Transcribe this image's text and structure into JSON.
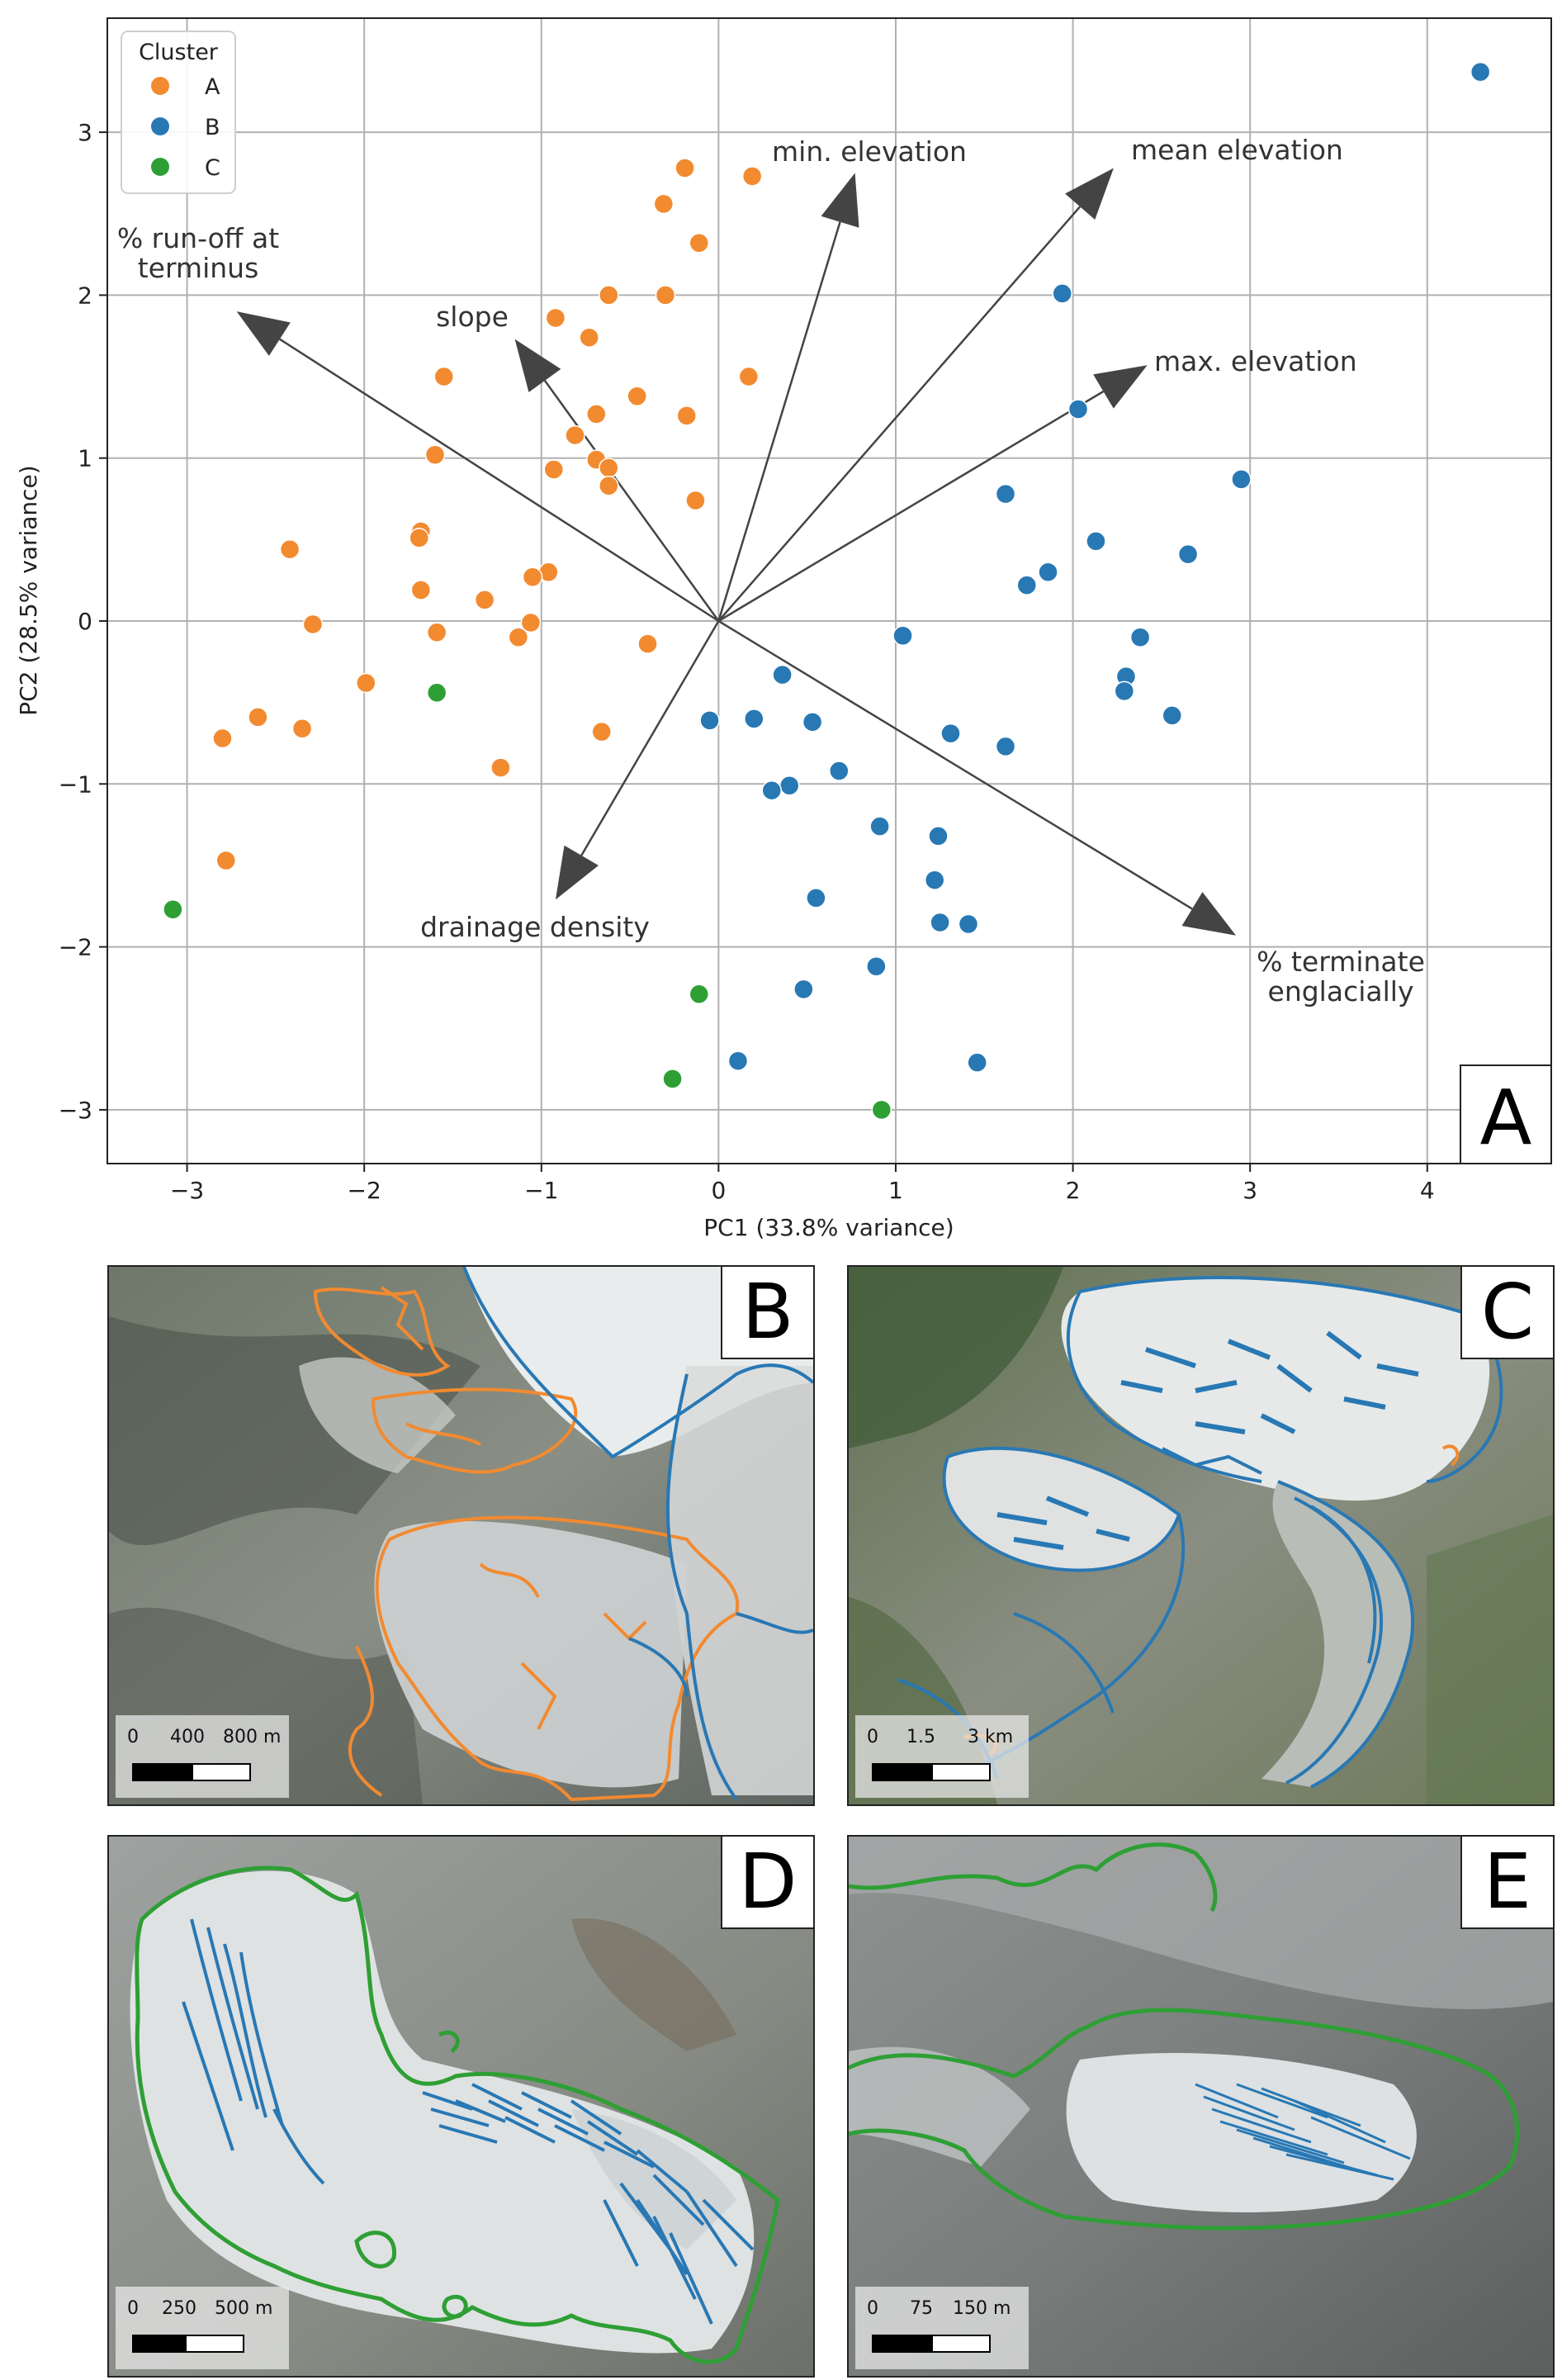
{
  "chart_data": {
    "type": "scatter",
    "panel_label": "A",
    "xlabel": "PC1 (33.8% variance)",
    "ylabel": "PC2 (28.5% variance)",
    "xlim": [
      -3.45,
      4.7
    ],
    "ylim": [
      -3.33,
      3.7
    ],
    "xticks": [
      -3,
      -2,
      -1,
      0,
      1,
      2,
      3,
      4
    ],
    "yticks": [
      -3,
      -2,
      -1,
      0,
      1,
      2,
      3
    ],
    "xtick_labels": [
      "−3",
      "−2",
      "−1",
      "0",
      "1",
      "2",
      "3",
      "4"
    ],
    "ytick_labels": [
      "−3",
      "−2",
      "−1",
      "0",
      "1",
      "2",
      "3"
    ],
    "grid": true,
    "legend": {
      "title": "Cluster",
      "position": "top-left"
    },
    "series": [
      {
        "name": "A",
        "color": "#f28a30",
        "points": [
          [
            0.19,
            2.73
          ],
          [
            -0.19,
            2.78
          ],
          [
            -0.31,
            2.56
          ],
          [
            -0.11,
            2.32
          ],
          [
            -0.62,
            2.0
          ],
          [
            -0.3,
            2.0
          ],
          [
            -0.92,
            1.86
          ],
          [
            -0.73,
            1.74
          ],
          [
            -1.55,
            1.5
          ],
          [
            0.17,
            1.5
          ],
          [
            -0.46,
            1.38
          ],
          [
            -0.69,
            1.27
          ],
          [
            -0.18,
            1.26
          ],
          [
            -1.6,
            1.02
          ],
          [
            -0.81,
            1.14
          ],
          [
            -0.69,
            0.99
          ],
          [
            -0.62,
            0.94
          ],
          [
            -0.93,
            0.93
          ],
          [
            -0.62,
            0.83
          ],
          [
            -0.13,
            0.74
          ],
          [
            -1.68,
            0.55
          ],
          [
            -1.69,
            0.51
          ],
          [
            -2.42,
            0.44
          ],
          [
            -0.96,
            0.3
          ],
          [
            -1.05,
            0.27
          ],
          [
            -1.68,
            0.19
          ],
          [
            -1.32,
            0.13
          ],
          [
            -2.29,
            -0.02
          ],
          [
            -1.59,
            -0.07
          ],
          [
            -1.06,
            -0.01
          ],
          [
            -1.13,
            -0.1
          ],
          [
            -0.4,
            -0.14
          ],
          [
            -1.99,
            -0.38
          ],
          [
            -2.6,
            -0.59
          ],
          [
            -2.35,
            -0.66
          ],
          [
            -2.8,
            -0.72
          ],
          [
            -0.66,
            -0.68
          ],
          [
            -1.23,
            -0.9
          ],
          [
            -2.78,
            -1.47
          ]
        ]
      },
      {
        "name": "B",
        "color": "#2878b4",
        "points": [
          [
            4.3,
            3.37
          ],
          [
            1.94,
            2.01
          ],
          [
            2.03,
            1.3
          ],
          [
            2.95,
            0.87
          ],
          [
            1.62,
            0.78
          ],
          [
            2.13,
            0.49
          ],
          [
            2.65,
            0.41
          ],
          [
            1.86,
            0.3
          ],
          [
            1.74,
            0.22
          ],
          [
            2.38,
            -0.1
          ],
          [
            1.04,
            -0.09
          ],
          [
            2.3,
            -0.34
          ],
          [
            2.29,
            -0.43
          ],
          [
            2.56,
            -0.58
          ],
          [
            0.36,
            -0.33
          ],
          [
            -0.05,
            -0.61
          ],
          [
            0.2,
            -0.6
          ],
          [
            0.53,
            -0.62
          ],
          [
            1.31,
            -0.69
          ],
          [
            1.62,
            -0.77
          ],
          [
            0.68,
            -0.92
          ],
          [
            0.4,
            -1.01
          ],
          [
            0.3,
            -1.04
          ],
          [
            0.91,
            -1.26
          ],
          [
            1.24,
            -1.32
          ],
          [
            1.22,
            -1.59
          ],
          [
            0.55,
            -1.7
          ],
          [
            1.25,
            -1.85
          ],
          [
            1.41,
            -1.86
          ],
          [
            0.89,
            -2.12
          ],
          [
            0.48,
            -2.26
          ],
          [
            0.11,
            -2.7
          ],
          [
            1.46,
            -2.71
          ]
        ]
      },
      {
        "name": "C",
        "color": "#2e9f34",
        "points": [
          [
            -1.59,
            -0.44
          ],
          [
            -3.08,
            -1.77
          ],
          [
            -0.11,
            -2.29
          ],
          [
            -0.26,
            -2.81
          ],
          [
            0.92,
            -3.0
          ]
        ]
      }
    ],
    "loadings": [
      {
        "label": "min. elevation",
        "x": 0.77,
        "y": 2.75
      },
      {
        "label": "mean elevation",
        "x": 2.23,
        "y": 2.78
      },
      {
        "label": "max. elevation",
        "x": 2.42,
        "y": 1.57
      },
      {
        "label": "slope",
        "x": -1.15,
        "y": 1.73
      },
      {
        "label": "% run-off at terminus",
        "x": -2.72,
        "y": 1.9
      },
      {
        "label": "drainage density",
        "x": -0.92,
        "y": -1.71
      },
      {
        "label": "% terminate englacially",
        "x": 2.92,
        "y": -1.93
      }
    ],
    "loading_labels": [
      {
        "key": "min_elevation",
        "lines": [
          "min. elevation"
        ]
      },
      {
        "key": "mean_elevation",
        "lines": [
          "mean elevation"
        ]
      },
      {
        "key": "max_elevation",
        "lines": [
          "max. elevation"
        ]
      },
      {
        "key": "slope",
        "lines": [
          "slope"
        ]
      },
      {
        "key": "runoff",
        "lines": [
          "% run-off at",
          "terminus"
        ]
      },
      {
        "key": "drainage",
        "lines": [
          "drainage density"
        ]
      },
      {
        "key": "englacial",
        "lines": [
          "% terminate",
          "englacially"
        ]
      }
    ]
  },
  "panels": {
    "B": {
      "label": "B",
      "scale": [
        "0",
        "400",
        "800 m"
      ],
      "outline_color": "#f28a30"
    },
    "C": {
      "label": "C",
      "scale": [
        "0",
        "1.5",
        "3 km"
      ],
      "outline_color": "#2878b4"
    },
    "D": {
      "label": "D",
      "scale": [
        "0",
        "250",
        "500 m"
      ],
      "outline_color": "#2e9f34"
    },
    "E": {
      "label": "E",
      "scale": [
        "0",
        "75",
        "150 m"
      ],
      "outline_color": "#2e9f34"
    }
  }
}
